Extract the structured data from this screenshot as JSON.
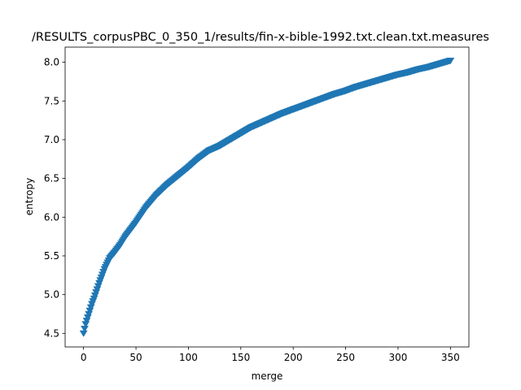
{
  "chart_data": {
    "type": "scatter",
    "title": "/RESULTS_corpusPBC_0_350_1/results/fin-x-bible-1992.txt.clean.txt.measures",
    "xlabel": "merge",
    "ylabel": "entropy",
    "xlim": [
      -17.6,
      367.6
    ],
    "ylim": [
      4.325,
      8.195
    ],
    "xticks": [
      0,
      50,
      100,
      150,
      200,
      250,
      300,
      350
    ],
    "yticks": [
      4.5,
      5.0,
      5.5,
      6.0,
      6.5,
      7.0,
      7.5,
      8.0
    ],
    "xtick_labels": [
      "0",
      "50",
      "100",
      "150",
      "200",
      "250",
      "300",
      "350"
    ],
    "ytick_labels": [
      "4.5",
      "5.0",
      "5.5",
      "6.0",
      "6.5",
      "7.0",
      "7.5",
      "8.0"
    ],
    "marker": "triangle-down",
    "grid": false,
    "legend": "none",
    "series": [
      {
        "color": "#1f77b4",
        "x": [
          0,
          2,
          5,
          8,
          10,
          15,
          20,
          25,
          30,
          35,
          40,
          50,
          60,
          70,
          80,
          90,
          100,
          110,
          120,
          130,
          140,
          150,
          160,
          170,
          180,
          190,
          200,
          210,
          220,
          230,
          240,
          250,
          260,
          270,
          280,
          290,
          300,
          310,
          320,
          330,
          340,
          350
        ],
        "y": [
          4.5,
          4.62,
          4.75,
          4.88,
          4.95,
          5.15,
          5.33,
          5.47,
          5.55,
          5.64,
          5.75,
          5.93,
          6.13,
          6.29,
          6.42,
          6.53,
          6.64,
          6.76,
          6.86,
          6.92,
          7.0,
          7.08,
          7.16,
          7.22,
          7.28,
          7.34,
          7.39,
          7.44,
          7.49,
          7.54,
          7.59,
          7.63,
          7.68,
          7.72,
          7.76,
          7.8,
          7.84,
          7.87,
          7.91,
          7.94,
          7.98,
          8.02
        ]
      }
    ]
  }
}
